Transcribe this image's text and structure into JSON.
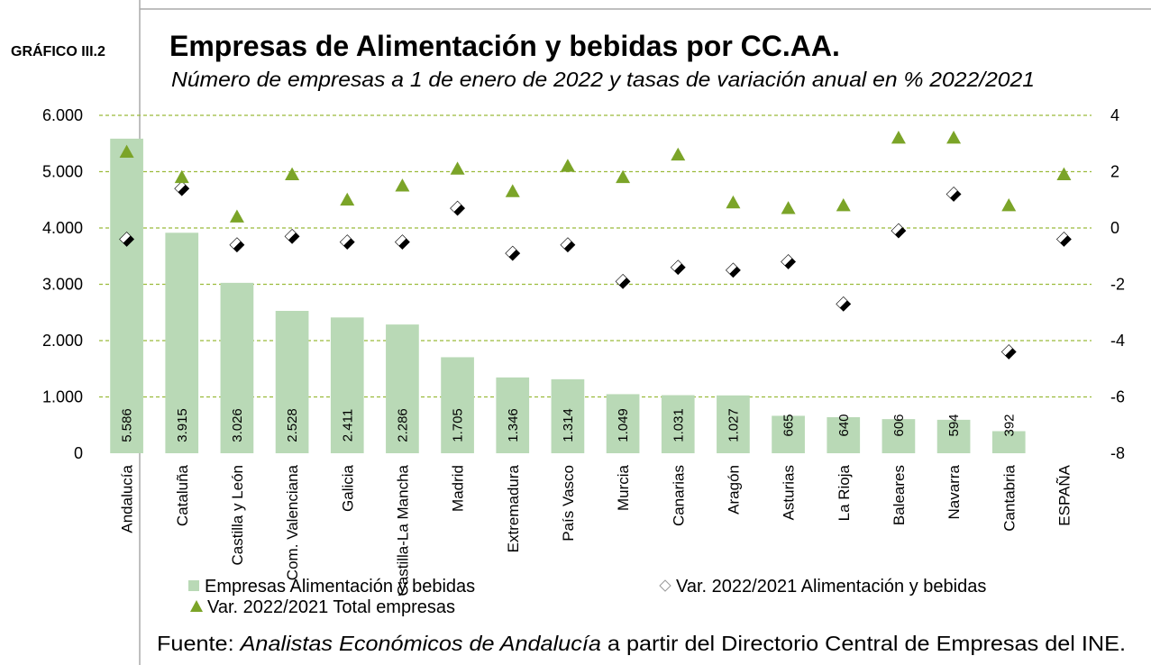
{
  "chart_data": {
    "type": "bar",
    "label": "GRÁFICO III.2",
    "title": "Empresas de Alimentación y bebidas por CC.AA.",
    "subtitle": "Número de empresas a 1 de enero de 2022 y tasas de variación anual en % 2022/2021",
    "source": [
      "Fuente:",
      "Analistas Económicos de Andalucía",
      "a partir del Directorio Central de Empresas del INE."
    ],
    "categories": [
      "Andalucía",
      "Cataluña",
      "Castilla y León",
      "Com. Valenciana",
      "Galicia",
      "Castilla-La Mancha",
      "Madrid",
      "Extremadura",
      "País Vasco",
      "Murcia",
      "Canarias",
      "Aragón",
      "Asturias",
      "La Rioja",
      "Baleares",
      "Navarra",
      "Cantabria",
      "ESPAÑA"
    ],
    "series": [
      {
        "name": "Empresas Alimentación y bebidas",
        "type": "bar",
        "color": "#b9d9b6",
        "values": [
          5586,
          3915,
          3026,
          2528,
          2411,
          2286,
          1705,
          1346,
          1314,
          1049,
          1031,
          1027,
          665,
          640,
          606,
          594,
          392,
          null
        ],
        "value_labels": [
          "5.586",
          "3.915",
          "3.026",
          "2.528",
          "2.411",
          "2.286",
          "1.705",
          "1.346",
          "1.314",
          "1.049",
          "1.031",
          "1.027",
          "665",
          "640",
          "606",
          "594",
          "392",
          null
        ]
      },
      {
        "name": "Var. 2022/2021 Alimentación y bebidas",
        "type": "diamond",
        "axis": "y2",
        "color": "#000000",
        "values": [
          -0.4,
          1.4,
          -0.6,
          -0.3,
          -0.5,
          -0.5,
          0.7,
          -0.9,
          -0.6,
          -1.9,
          -1.4,
          -1.5,
          -1.2,
          -2.7,
          -0.1,
          1.2,
          -4.4,
          -0.4
        ]
      },
      {
        "name": "Var. 2022/2021 Total empresas",
        "type": "triangle",
        "axis": "y2",
        "color": "#7ba428",
        "values": [
          2.7,
          1.8,
          0.4,
          1.9,
          1.0,
          1.5,
          2.1,
          1.3,
          2.2,
          1.8,
          2.6,
          0.9,
          0.7,
          0.8,
          3.2,
          3.2,
          0.8,
          1.9
        ]
      }
    ],
    "ylim": [
      0,
      6000
    ],
    "yticks": [
      0,
      {
        "value": 1000,
        "label": "1.000"
      },
      {
        "value": 2000,
        "label": "2.000"
      },
      {
        "value": 3000,
        "label": "3.000"
      },
      {
        "value": 4000,
        "label": "4.000"
      },
      {
        "value": 5000,
        "label": "5.000"
      },
      {
        "value": 6000,
        "label": "6.000"
      }
    ],
    "y2lim": [
      -8,
      4
    ],
    "y2ticks": [
      -8,
      -6,
      -4,
      -2,
      0,
      2,
      4
    ],
    "grid": true,
    "grid_color": "#9bbb3b"
  }
}
